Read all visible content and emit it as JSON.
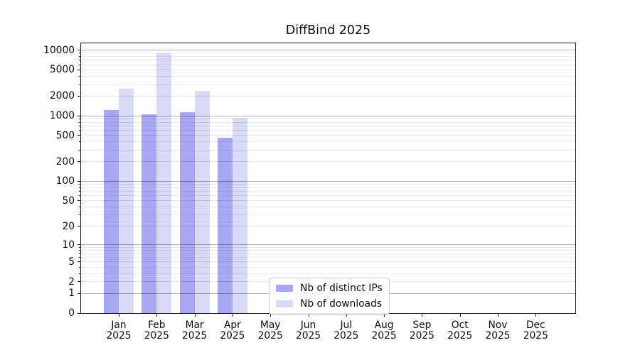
{
  "chart_data": {
    "type": "bar",
    "title": "DiffBind 2025",
    "x_year": "2025",
    "categories": [
      "Jan",
      "Feb",
      "Mar",
      "Apr",
      "May",
      "Jun",
      "Jul",
      "Aug",
      "Sep",
      "Oct",
      "Nov",
      "Dec"
    ],
    "series": [
      {
        "key": "ips",
        "name": "Nb of distinct IPs",
        "color": "#a8a8f2",
        "values": [
          1230,
          1045,
          1130,
          460,
          null,
          null,
          null,
          null,
          null,
          null,
          null,
          null
        ]
      },
      {
        "key": "downloads",
        "name": "Nb of downloads",
        "color": "#d9d9f8",
        "values": [
          2580,
          8950,
          2375,
          930,
          null,
          null,
          null,
          null,
          null,
          null,
          null,
          null
        ]
      }
    ],
    "yscale": "log1p",
    "yticks": [
      0,
      1,
      2,
      5,
      10,
      20,
      50,
      100,
      200,
      500,
      1000,
      2000,
      5000,
      10000
    ],
    "yticks_minor": [
      3,
      4,
      6,
      7,
      8,
      9,
      30,
      40,
      60,
      70,
      80,
      90,
      300,
      400,
      600,
      700,
      800,
      900,
      3000,
      4000,
      6000,
      7000,
      8000,
      9000
    ],
    "ylim": [
      0,
      13500
    ],
    "xlabel": "",
    "ylabel": "",
    "grid": true,
    "legend_position": "lower center"
  },
  "legend": {
    "items": [
      {
        "label": "Nb of distinct IPs"
      },
      {
        "label": "Nb of downloads"
      }
    ]
  }
}
